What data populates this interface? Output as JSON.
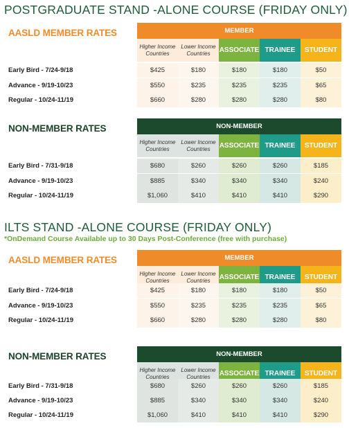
{
  "column_headers": {
    "higher_income": "Higher Income Countries",
    "lower_income": "Lower Income Countries",
    "associate": "ASSOCIATE",
    "trainee": "TRAINEE",
    "student": "STUDENT"
  },
  "colors": {
    "orange": "#f08b2a",
    "dark_green": "#1b4b2c",
    "associate_green": "#7db440",
    "trainee_teal": "#1f9b8a",
    "student_yellow": "#f6b41b",
    "title_green": "#1f5c3a"
  },
  "sections": [
    {
      "title": "POSTGRADUATE STAND -ALONE COURSE (FRIDAY ONLY)",
      "subtitle": "",
      "member": {
        "heading": "AASLD MEMBER RATES",
        "band": "MEMBER",
        "rows": [
          {
            "label": "Early Bird - 7/24-9/18",
            "values": [
              "$425",
              "$180",
              "$180",
              "$180",
              "$50"
            ]
          },
          {
            "label": "Advance - 9/19-10/23",
            "values": [
              "$550",
              "$235",
              "$235",
              "$235",
              "$65"
            ]
          },
          {
            "label": "Regular - 10/24-11/19",
            "values": [
              "$660",
              "$280",
              "$280",
              "$280",
              "$80"
            ]
          }
        ]
      },
      "nonmember": {
        "heading": "NON-MEMBER RATES",
        "band": "NON-MEMBER",
        "rows": [
          {
            "label": "Early Bird - 7/31-9/18",
            "values": [
              "$680",
              "$260",
              "$260",
              "$260",
              "$185"
            ]
          },
          {
            "label": "Advance - 9/19-10/23",
            "values": [
              "$885",
              "$340",
              "$340",
              "$340",
              "$240"
            ]
          },
          {
            "label": "Regular - 10/24-11/19",
            "values": [
              "$1,060",
              "$410",
              "$410",
              "$410",
              "$290"
            ]
          }
        ]
      }
    },
    {
      "title": "ILTS STAND -ALONE COURSE (FRIDAY ONLY)",
      "subtitle": "*OnDemand Course Available up to 30 Days Post-Conference (free with purchase)",
      "member": {
        "heading": "AASLD MEMBER RATES",
        "band": "MEMBER",
        "rows": [
          {
            "label": "Early Bird - 7/24-9/18",
            "values": [
              "$425",
              "$180",
              "$180",
              "$180",
              "$50"
            ]
          },
          {
            "label": "Advance - 9/19-10/23",
            "values": [
              "$550",
              "$235",
              "$235",
              "$235",
              "$65"
            ]
          },
          {
            "label": "Regular - 10/24-11/19",
            "values": [
              "$660",
              "$280",
              "$280",
              "$280",
              "$80"
            ]
          }
        ]
      },
      "nonmember": {
        "heading": "NON-MEMBER RATES",
        "band": "NON-MEMBER",
        "rows": [
          {
            "label": "Early Bird - 7/31-9/18",
            "values": [
              "$680",
              "$260",
              "$260",
              "$260",
              "$185"
            ]
          },
          {
            "label": "Advance - 9/19-10/23",
            "values": [
              "$885",
              "$340",
              "$340",
              "$340",
              "$240"
            ]
          },
          {
            "label": "Regular - 10/24-11/19",
            "values": [
              "$1,060",
              "$410",
              "$410",
              "$410",
              "$290"
            ]
          }
        ]
      }
    }
  ]
}
